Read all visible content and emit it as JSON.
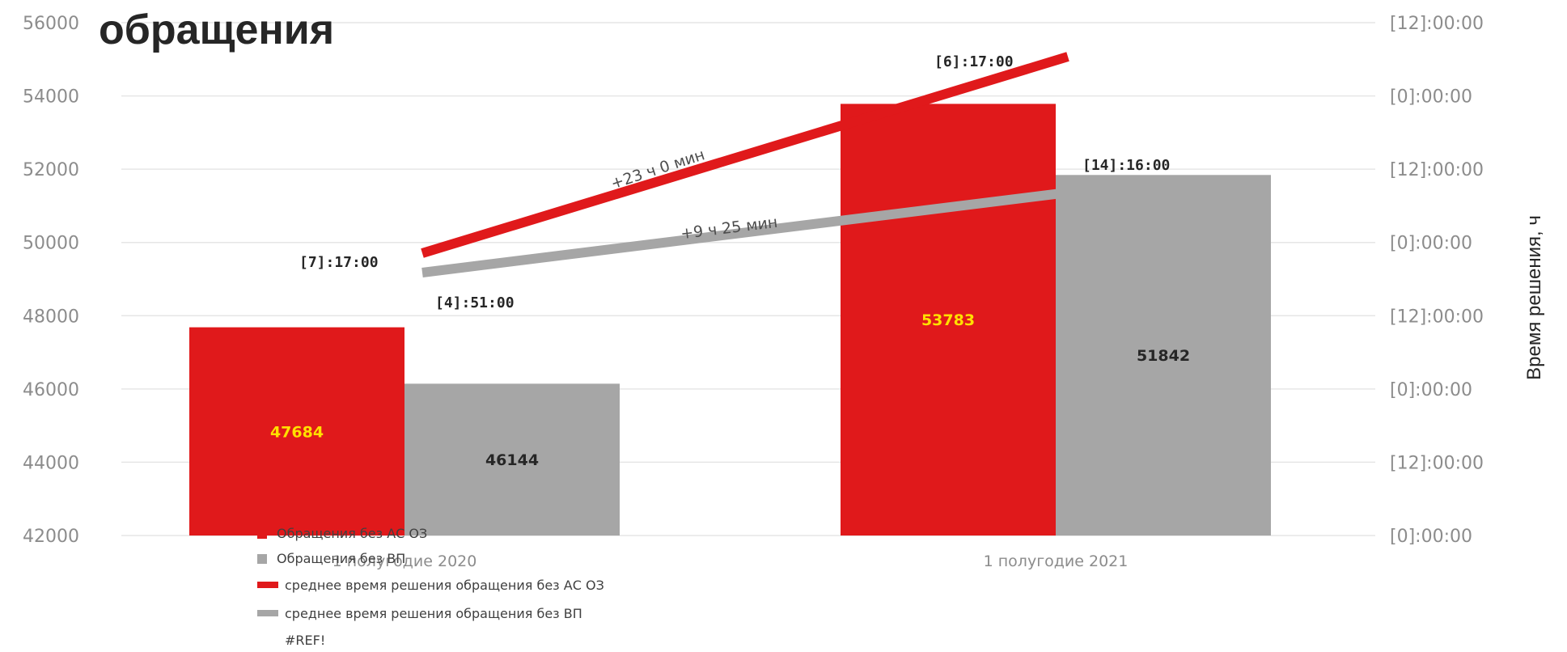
{
  "chart_data": {
    "type": "bar",
    "title": "обращения",
    "categories": [
      "1 полугодие 2020",
      "1 полугодие 2021"
    ],
    "series": [
      {
        "name": "Обращения без АС ОЗ",
        "values": [
          47684,
          53783
        ],
        "color": "#e0191b",
        "label_color": "#ffe000"
      },
      {
        "name": "Обращения без ВП",
        "values": [
          46144,
          51842
        ],
        "color": "#a6a6a6",
        "label_color": "#262626"
      }
    ],
    "ylim": [
      42000,
      56000
    ],
    "yticks": [
      "42000",
      "44000",
      "46000",
      "48000",
      "50000",
      "52000",
      "54000",
      "56000"
    ],
    "y2label": "Время решения, ч",
    "y2ticks": [
      "[0]:00:00",
      "[12]:00:00",
      "[0]:00:00",
      "[12]:00:00",
      "[0]:00:00",
      "[12]:00:00",
      "[0]:00:00",
      "[12]:00:00"
    ],
    "lines": [
      {
        "name": "среднее время решения обращения без АС ОЗ",
        "color": "#e0191b",
        "labels": [
          "[7]:17:00",
          "[6]:17:00"
        ],
        "delta": "+23 ч 0 мин"
      },
      {
        "name": "среднее время решения обращения без ВП",
        "color": "#a6a6a6",
        "labels": [
          "[4]:51:00",
          "[14]:16:00"
        ],
        "delta": "+9 ч 25 мин"
      }
    ],
    "legend_extra": "#REF!",
    "legend_position": "bottom-left",
    "grid": true
  }
}
